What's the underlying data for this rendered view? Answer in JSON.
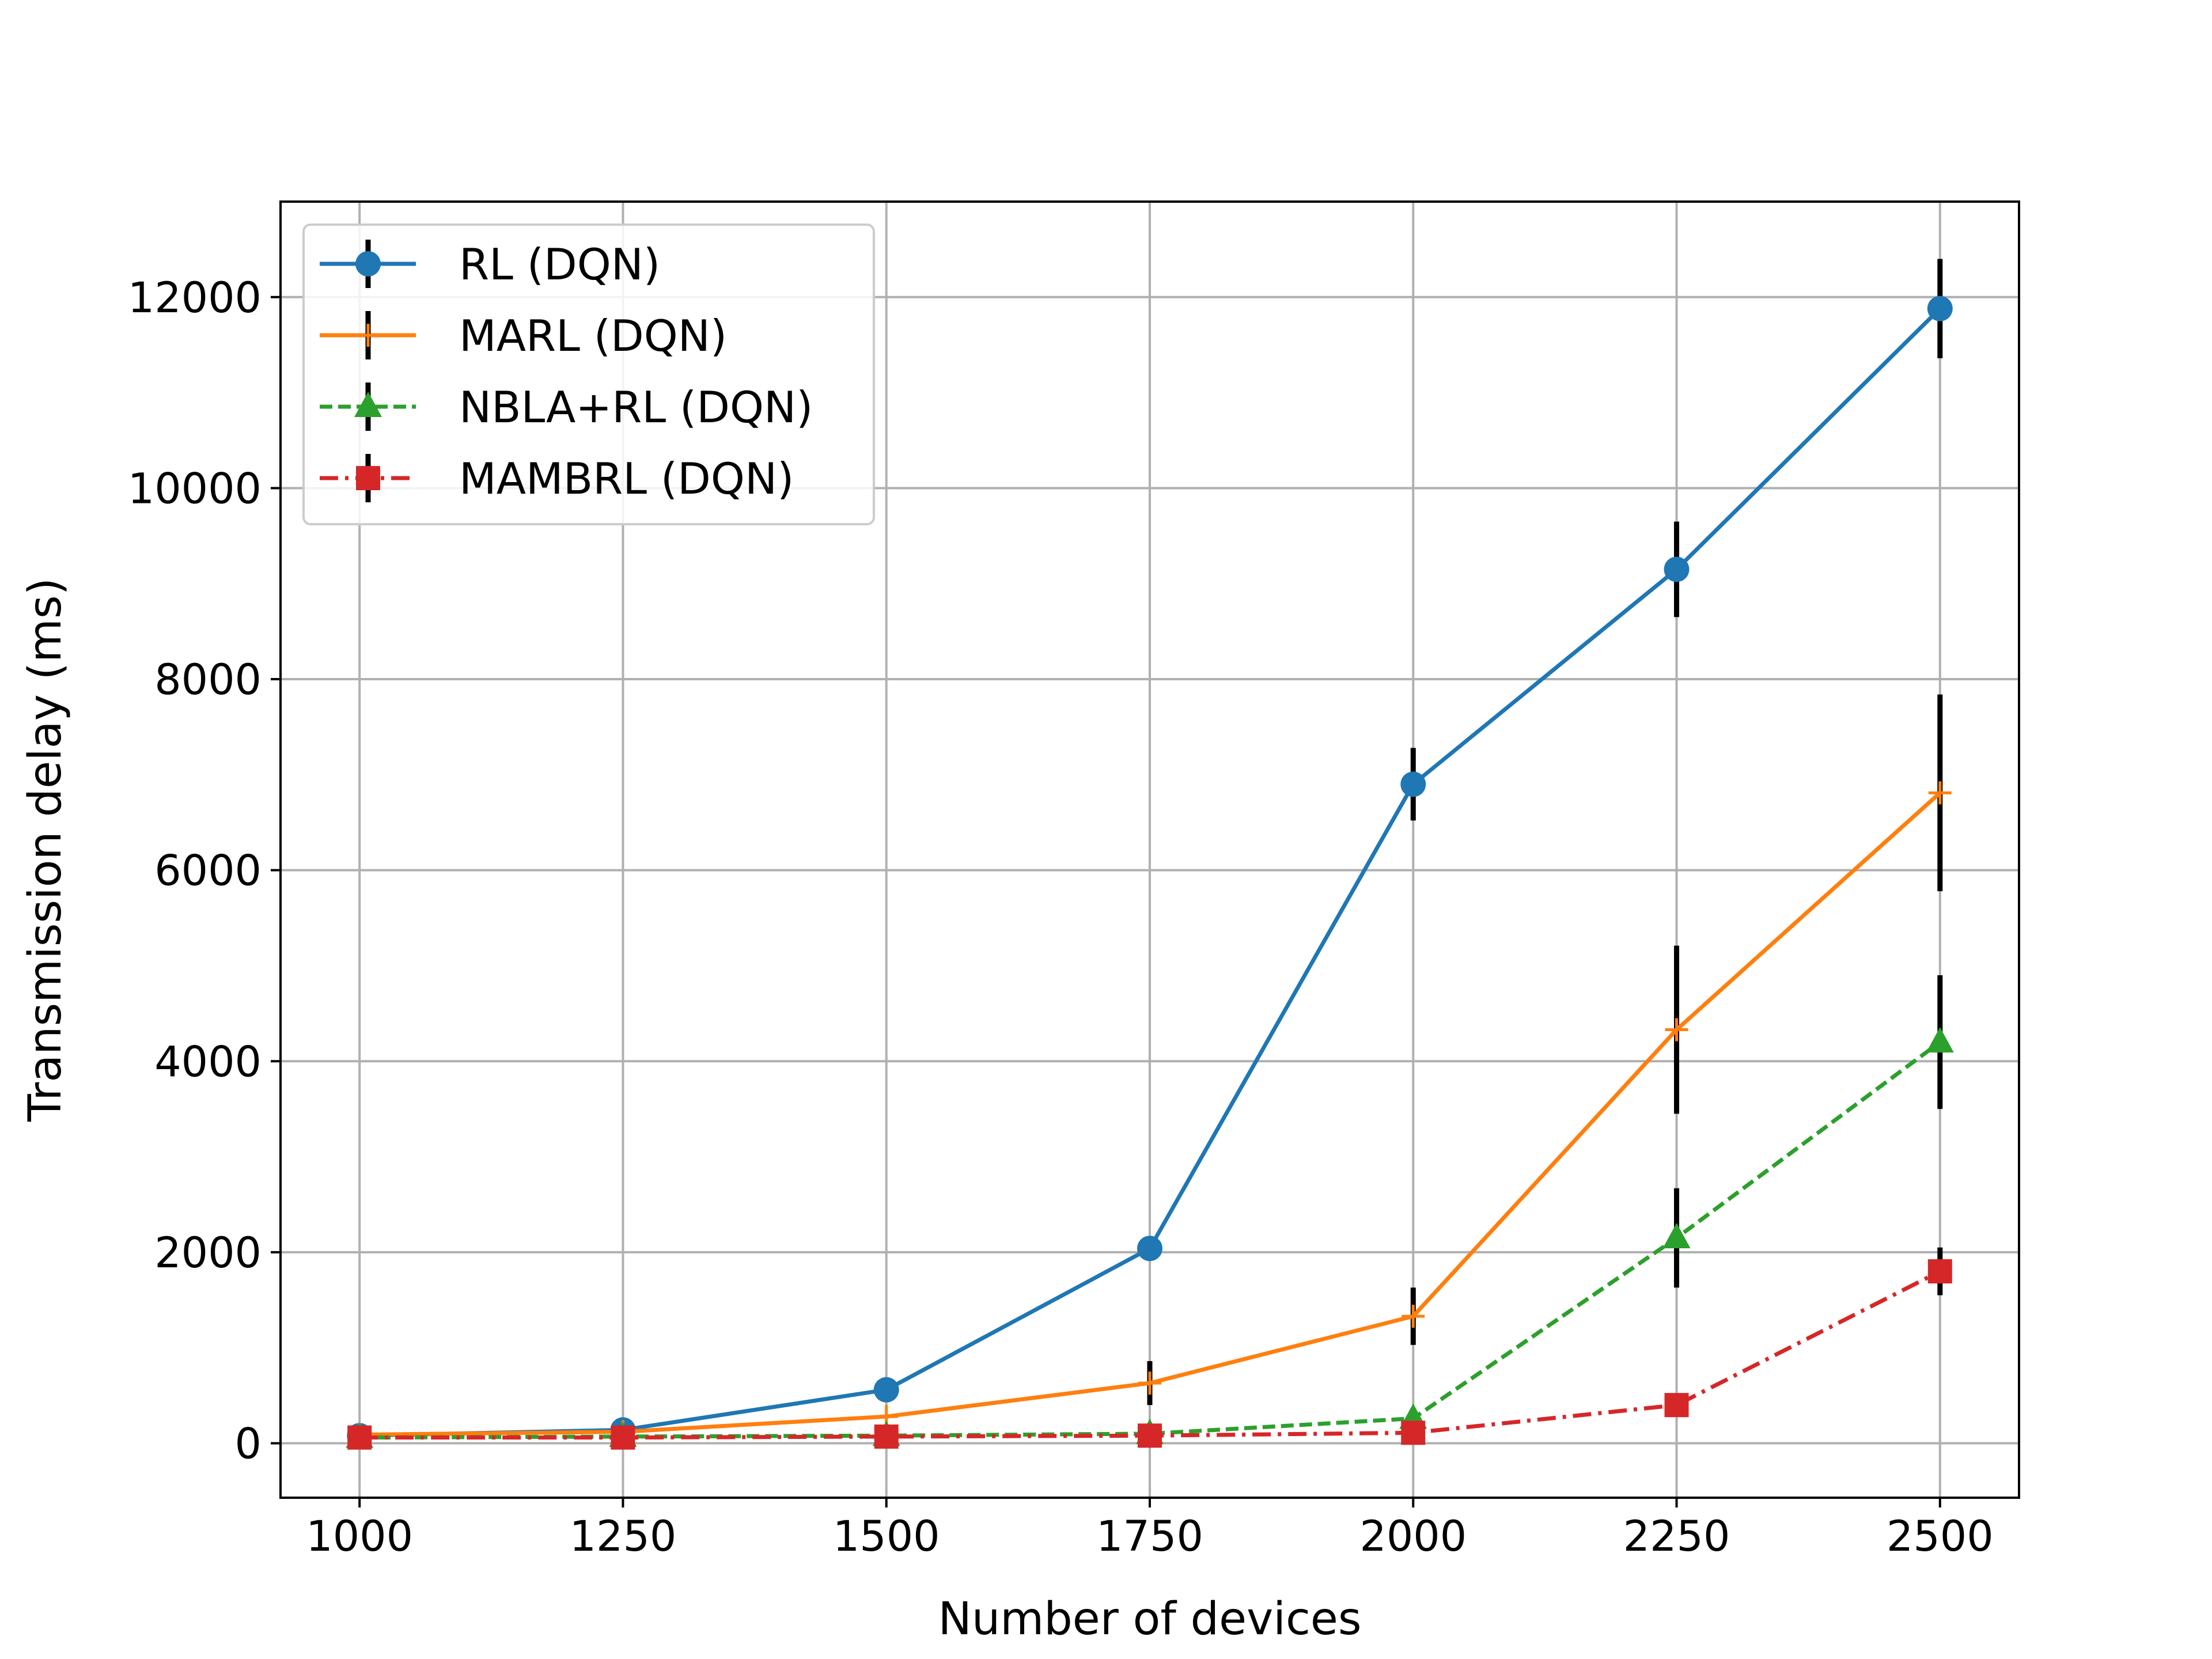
{
  "chart_data": {
    "type": "line",
    "title": "",
    "xlabel": "Number of devices",
    "ylabel": "Transmission delay (ms)",
    "x": [
      1000,
      1250,
      1500,
      1750,
      2000,
      2250,
      2500
    ],
    "x_ticks": [
      "1000",
      "1250",
      "1500",
      "1750",
      "2000",
      "2250",
      "2500"
    ],
    "y_ticks": [
      "0",
      "2000",
      "4000",
      "6000",
      "8000",
      "10000",
      "12000"
    ],
    "xlim": [
      925,
      2575
    ],
    "ylim": [
      -570,
      13000
    ],
    "grid": true,
    "legend_position": "top-left",
    "series": [
      {
        "name": "RL (DQN)",
        "color": "#1f77b4",
        "line_style": "solid",
        "marker": "circle",
        "values": [
          80,
          140,
          560,
          2040,
          6900,
          9150,
          11880
        ],
        "errors": [
          0,
          0,
          0,
          0,
          380,
          500,
          520
        ]
      },
      {
        "name": "MARL (DQN)",
        "color": "#ff7f0e",
        "line_style": "solid",
        "marker": "plus",
        "values": [
          90,
          120,
          280,
          630,
          1330,
          4330,
          6810
        ],
        "errors": [
          0,
          0,
          0,
          230,
          300,
          880,
          1030
        ]
      },
      {
        "name": "NBLA+RL (DQN)",
        "color": "#2ca02c",
        "line_style": "dashed",
        "marker": "triangle",
        "values": [
          60,
          70,
          80,
          100,
          260,
          2150,
          4200
        ],
        "errors": [
          0,
          0,
          0,
          0,
          0,
          520,
          700
        ]
      },
      {
        "name": "MAMBRL (DQN)",
        "color": "#d62728",
        "line_style": "dashdot",
        "marker": "square",
        "values": [
          60,
          60,
          70,
          80,
          110,
          400,
          1800
        ],
        "errors": [
          0,
          0,
          0,
          0,
          0,
          0,
          250
        ]
      }
    ],
    "errorbar_color": "#000000"
  }
}
